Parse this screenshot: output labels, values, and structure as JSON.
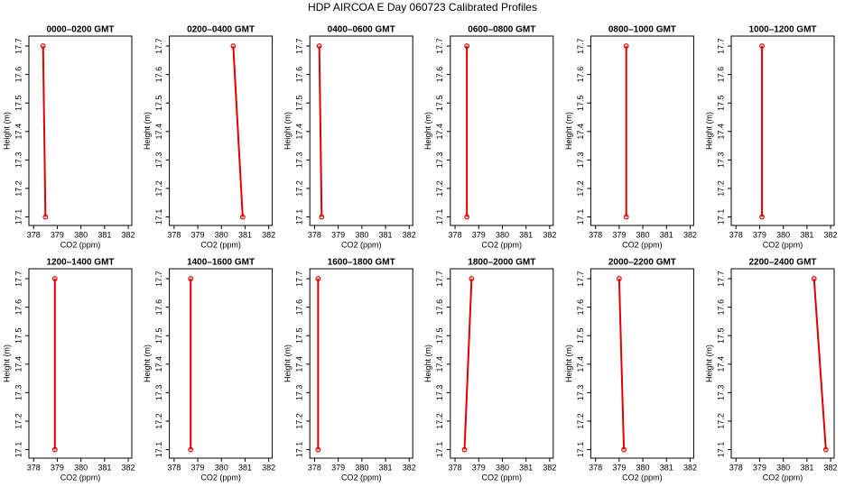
{
  "title": "HDP AIRCOA E  Day 060723  Calibrated Profiles",
  "chart_data": [
    {
      "type": "line",
      "title": "0000–0200 GMT",
      "x": [
        378.4,
        378.5
      ],
      "values": [
        17.7,
        17.1
      ],
      "color": "#e00000",
      "xlabel": "CO2 (ppm)",
      "ylabel": "Height (m)",
      "xlim": [
        377.8,
        382.15
      ],
      "ylim": [
        17.07,
        17.735
      ],
      "xticks": [
        378,
        379,
        380,
        381,
        382
      ],
      "yticks": [
        17.1,
        17.2,
        17.3,
        17.4,
        17.5,
        17.6,
        17.7
      ]
    },
    {
      "type": "line",
      "title": "0200–0400 GMT",
      "x": [
        380.5,
        380.9
      ],
      "values": [
        17.7,
        17.1
      ],
      "color": "#e00000",
      "xlabel": "CO2 (ppm)",
      "ylabel": "Height (m)",
      "xlim": [
        377.8,
        382.15
      ],
      "ylim": [
        17.07,
        17.735
      ],
      "xticks": [
        378,
        379,
        380,
        381,
        382
      ],
      "yticks": [
        17.1,
        17.2,
        17.3,
        17.4,
        17.5,
        17.6,
        17.7
      ]
    },
    {
      "type": "line",
      "title": "0400–0600 GMT",
      "x": [
        378.2,
        378.3
      ],
      "values": [
        17.7,
        17.1
      ],
      "color": "#e00000",
      "xlabel": "CO2 (ppm)",
      "ylabel": "Height (m)",
      "xlim": [
        377.8,
        382.15
      ],
      "ylim": [
        17.07,
        17.735
      ],
      "xticks": [
        378,
        379,
        380,
        381,
        382
      ],
      "yticks": [
        17.1,
        17.2,
        17.3,
        17.4,
        17.5,
        17.6,
        17.7
      ]
    },
    {
      "type": "line",
      "title": "0600–0800 GMT",
      "x": [
        378.5,
        378.5
      ],
      "values": [
        17.7,
        17.1
      ],
      "color": "#e00000",
      "xlabel": "CO2 (ppm)",
      "ylabel": "Height (m)",
      "xlim": [
        377.8,
        382.15
      ],
      "ylim": [
        17.07,
        17.735
      ],
      "xticks": [
        378,
        379,
        380,
        381,
        382
      ],
      "yticks": [
        17.1,
        17.2,
        17.3,
        17.4,
        17.5,
        17.6,
        17.7
      ]
    },
    {
      "type": "line",
      "title": "0800–1000 GMT",
      "x": [
        379.3,
        379.3
      ],
      "values": [
        17.7,
        17.1
      ],
      "color": "#e00000",
      "xlabel": "CO2 (ppm)",
      "ylabel": "Height (m)",
      "xlim": [
        377.8,
        382.15
      ],
      "ylim": [
        17.07,
        17.735
      ],
      "xticks": [
        378,
        379,
        380,
        381,
        382
      ],
      "yticks": [
        17.1,
        17.2,
        17.3,
        17.4,
        17.5,
        17.6,
        17.7
      ]
    },
    {
      "type": "line",
      "title": "1000–1200 GMT",
      "x": [
        379.1,
        379.1
      ],
      "values": [
        17.7,
        17.1
      ],
      "color": "#e00000",
      "xlabel": "CO2 (ppm)",
      "ylabel": "Height (m)",
      "xlim": [
        377.8,
        382.15
      ],
      "ylim": [
        17.07,
        17.735
      ],
      "xticks": [
        378,
        379,
        380,
        381,
        382
      ],
      "yticks": [
        17.1,
        17.2,
        17.3,
        17.4,
        17.5,
        17.6,
        17.7
      ]
    },
    {
      "type": "line",
      "title": "1200–1400 GMT",
      "x": [
        378.9,
        378.9
      ],
      "values": [
        17.7,
        17.1
      ],
      "color": "#e00000",
      "xlabel": "CO2 (ppm)",
      "ylabel": "Height (m)",
      "xlim": [
        377.8,
        382.15
      ],
      "ylim": [
        17.07,
        17.735
      ],
      "xticks": [
        378,
        379,
        380,
        381,
        382
      ],
      "yticks": [
        17.1,
        17.2,
        17.3,
        17.4,
        17.5,
        17.6,
        17.7
      ]
    },
    {
      "type": "line",
      "title": "1400–1600 GMT",
      "x": [
        378.7,
        378.7
      ],
      "values": [
        17.7,
        17.1
      ],
      "color": "#e00000",
      "xlabel": "CO2 (ppm)",
      "ylabel": "Height (m)",
      "xlim": [
        377.8,
        382.15
      ],
      "ylim": [
        17.07,
        17.735
      ],
      "xticks": [
        378,
        379,
        380,
        381,
        382
      ],
      "yticks": [
        17.1,
        17.2,
        17.3,
        17.4,
        17.5,
        17.6,
        17.7
      ]
    },
    {
      "type": "line",
      "title": "1600–1800 GMT",
      "x": [
        378.15,
        378.15
      ],
      "values": [
        17.7,
        17.1
      ],
      "color": "#e00000",
      "xlabel": "CO2 (ppm)",
      "ylabel": "Height (m)",
      "xlim": [
        377.8,
        382.15
      ],
      "ylim": [
        17.07,
        17.735
      ],
      "xticks": [
        378,
        379,
        380,
        381,
        382
      ],
      "yticks": [
        17.1,
        17.2,
        17.3,
        17.4,
        17.5,
        17.6,
        17.7
      ]
    },
    {
      "type": "line",
      "title": "1800–2000 GMT",
      "x": [
        378.7,
        378.4
      ],
      "values": [
        17.7,
        17.1
      ],
      "color": "#e00000",
      "xlabel": "CO2 (ppm)",
      "ylabel": "Height (m)",
      "xlim": [
        377.8,
        382.15
      ],
      "ylim": [
        17.07,
        17.735
      ],
      "xticks": [
        378,
        379,
        380,
        381,
        382
      ],
      "yticks": [
        17.1,
        17.2,
        17.3,
        17.4,
        17.5,
        17.6,
        17.7
      ]
    },
    {
      "type": "line",
      "title": "2000–2200 GMT",
      "x": [
        379.0,
        379.2
      ],
      "values": [
        17.7,
        17.1
      ],
      "color": "#e00000",
      "xlabel": "CO2 (ppm)",
      "ylabel": "Height (m)",
      "xlim": [
        377.8,
        382.15
      ],
      "ylim": [
        17.07,
        17.735
      ],
      "xticks": [
        378,
        379,
        380,
        381,
        382
      ],
      "yticks": [
        17.1,
        17.2,
        17.3,
        17.4,
        17.5,
        17.6,
        17.7
      ]
    },
    {
      "type": "line",
      "title": "2200–2400 GMT",
      "x": [
        381.3,
        381.8
      ],
      "values": [
        17.7,
        17.1
      ],
      "color": "#e00000",
      "xlabel": "CO2 (ppm)",
      "ylabel": "Height (m)",
      "xlim": [
        377.8,
        382.15
      ],
      "ylim": [
        17.07,
        17.735
      ],
      "xticks": [
        378,
        379,
        380,
        381,
        382
      ],
      "yticks": [
        17.1,
        17.2,
        17.3,
        17.4,
        17.5,
        17.6,
        17.7
      ]
    }
  ]
}
